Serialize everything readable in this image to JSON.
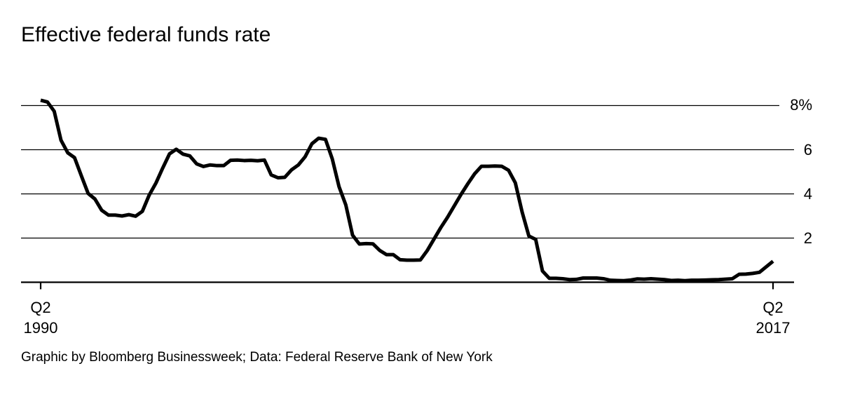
{
  "title": "Effective federal funds rate",
  "footer": "Graphic by Bloomberg Businessweek; Data: Federal Reserve Bank of New York",
  "y_axis": {
    "labels": [
      "8%",
      "6",
      "4",
      "2"
    ],
    "values": [
      8,
      6,
      4,
      2
    ]
  },
  "x_axis": {
    "start": {
      "line1": "Q2",
      "line2": "1990"
    },
    "end": {
      "line1": "Q2",
      "line2": "2017"
    }
  },
  "colors": {
    "line": "#000000",
    "grid": "#000000",
    "axis": "#000000",
    "background": "#ffffff",
    "text": "#000000"
  },
  "chart_data": {
    "type": "line",
    "title": "Effective federal funds rate",
    "source": "Graphic by Bloomberg Businessweek; Data: Federal Reserve Bank of New York",
    "unit": "%",
    "frequency": "quarterly",
    "x_start": "Q2 1990",
    "x_end": "Q2 2017",
    "ylim": [
      0,
      8.5
    ],
    "yticks": [
      2,
      4,
      6,
      8
    ],
    "ytick_labels": [
      "2",
      "4",
      "6",
      "8%"
    ],
    "grid": "horizontal",
    "legend": "none",
    "series": [
      {
        "name": "Effective federal funds rate",
        "values": [
          8.24,
          8.16,
          7.74,
          6.43,
          5.86,
          5.64,
          4.82,
          4.02,
          3.77,
          3.26,
          3.04,
          3.04,
          3.0,
          3.06,
          2.99,
          3.21,
          3.94,
          4.49,
          5.17,
          5.81,
          6.02,
          5.8,
          5.72,
          5.36,
          5.24,
          5.31,
          5.28,
          5.28,
          5.52,
          5.53,
          5.51,
          5.52,
          5.5,
          5.53,
          4.86,
          4.73,
          4.75,
          5.09,
          5.31,
          5.68,
          6.27,
          6.52,
          6.47,
          5.59,
          4.33,
          3.5,
          2.13,
          1.73,
          1.75,
          1.74,
          1.44,
          1.25,
          1.25,
          1.02,
          1.0,
          1.0,
          1.01,
          1.43,
          1.95,
          2.47,
          2.94,
          3.46,
          3.98,
          4.46,
          4.91,
          5.25,
          5.25,
          5.26,
          5.25,
          5.07,
          4.5,
          3.18,
          2.09,
          1.94,
          0.51,
          0.18,
          0.18,
          0.16,
          0.12,
          0.13,
          0.19,
          0.19,
          0.19,
          0.16,
          0.09,
          0.08,
          0.07,
          0.1,
          0.15,
          0.14,
          0.16,
          0.14,
          0.12,
          0.08,
          0.09,
          0.07,
          0.09,
          0.09,
          0.1,
          0.11,
          0.12,
          0.14,
          0.16,
          0.36,
          0.37,
          0.4,
          0.45,
          0.7,
          0.95
        ]
      }
    ]
  }
}
